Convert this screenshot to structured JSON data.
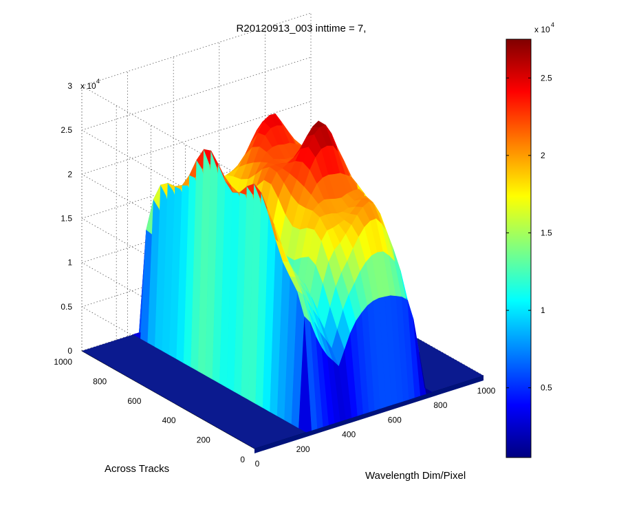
{
  "chart_data": {
    "type": "surface",
    "title": "R20120913_003 inttime = 7,",
    "xlabel": "Wavelength Dim/Pixel",
    "ylabel": "Across Tracks",
    "zlabel": "",
    "x_range": [
      0,
      1000
    ],
    "y_range": [
      0,
      1000
    ],
    "zlim": [
      0,
      30000
    ],
    "x_ticks": [
      "0",
      "200",
      "400",
      "600",
      "800",
      "1000"
    ],
    "y_ticks": [
      "0",
      "200",
      "400",
      "600",
      "800",
      "1000"
    ],
    "z_ticks": [
      "0",
      "0.5",
      "1",
      "1.5",
      "2",
      "2.5",
      "3"
    ],
    "z_multiplier": "x 10",
    "z_exponent": "4",
    "grid": true,
    "colormap": "jet",
    "colorbar": {
      "ticks": [
        "0.5",
        "1",
        "1.5",
        "2",
        "2.5"
      ],
      "tick_values": [
        5000,
        10000,
        15000,
        20000,
        25000
      ],
      "range": [
        500,
        27500
      ],
      "multiplier": "x 10",
      "exponent": "4"
    },
    "series": [
      {
        "x": [
          0,
          25,
          50,
          75,
          100,
          125,
          150,
          175,
          200,
          225,
          250,
          275,
          300,
          325,
          350,
          375,
          400,
          425,
          450,
          475,
          500,
          525,
          550,
          575,
          600,
          625,
          650,
          675,
          700,
          725,
          750,
          775,
          800,
          825,
          850,
          875,
          900,
          925,
          950,
          975,
          1000
        ],
        "max_intensity": [
          0,
          0,
          0,
          0,
          0,
          0,
          0,
          0,
          0,
          0,
          26500,
          25200,
          22000,
          19500,
          17500,
          16000,
          14000,
          18000,
          21500,
          23500,
          24500,
          25500,
          26200,
          26800,
          27200,
          27500,
          27000,
          26000,
          24000,
          18000,
          9000,
          0,
          0,
          0,
          0,
          0,
          0,
          0,
          0,
          0,
          0
        ],
        "across_track_extent": [
          0,
          1000
        ]
      }
    ]
  }
}
